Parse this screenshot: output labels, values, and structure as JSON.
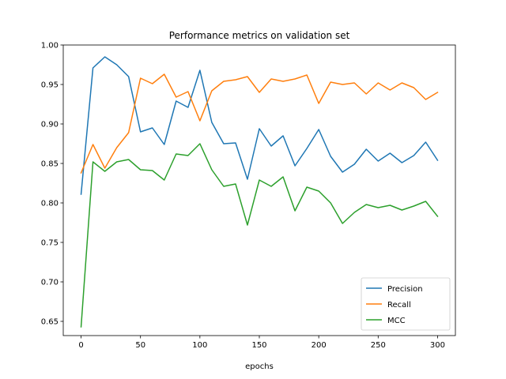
{
  "chart_data": {
    "type": "line",
    "title": "Performance metrics on validation set",
    "xlabel": "epochs",
    "ylabel": "",
    "xlim": [
      -15,
      315
    ],
    "ylim": [
      0.632,
      1.0
    ],
    "x_ticks": [
      0,
      50,
      100,
      150,
      200,
      250,
      300
    ],
    "x_tick_labels": [
      "0",
      "50",
      "100",
      "150",
      "200",
      "250",
      "300"
    ],
    "y_ticks": [
      0.65,
      0.7,
      0.75,
      0.8,
      0.85,
      0.9,
      0.95,
      1.0
    ],
    "y_tick_labels": [
      "0.65",
      "0.70",
      "0.75",
      "0.80",
      "0.85",
      "0.90",
      "0.95",
      "1.00"
    ],
    "grid": false,
    "legend_position": "lower-right",
    "x": [
      0,
      10,
      20,
      30,
      40,
      50,
      60,
      70,
      80,
      90,
      100,
      110,
      120,
      130,
      140,
      150,
      160,
      170,
      180,
      190,
      200,
      210,
      220,
      230,
      240,
      250,
      260,
      270,
      280,
      290,
      300
    ],
    "series": [
      {
        "name": "Precision",
        "color": "#1f77b4",
        "values": [
          0.811,
          0.971,
          0.985,
          0.975,
          0.96,
          0.89,
          0.895,
          0.874,
          0.929,
          0.921,
          0.968,
          0.902,
          0.875,
          0.876,
          0.83,
          0.894,
          0.872,
          0.885,
          0.847,
          0.869,
          0.893,
          0.859,
          0.839,
          0.849,
          0.868,
          0.853,
          0.863,
          0.851,
          0.86,
          0.877,
          0.854
        ]
      },
      {
        "name": "Recall",
        "color": "#ff7f0e",
        "values": [
          0.838,
          0.874,
          0.844,
          0.87,
          0.889,
          0.958,
          0.951,
          0.963,
          0.934,
          0.941,
          0.904,
          0.942,
          0.954,
          0.956,
          0.96,
          0.94,
          0.957,
          0.954,
          0.957,
          0.962,
          0.926,
          0.953,
          0.95,
          0.952,
          0.938,
          0.952,
          0.943,
          0.952,
          0.946,
          0.931,
          0.94
        ]
      },
      {
        "name": "MCC",
        "color": "#2ca02c",
        "values": [
          0.643,
          0.852,
          0.84,
          0.852,
          0.855,
          0.842,
          0.841,
          0.829,
          0.862,
          0.86,
          0.875,
          0.842,
          0.821,
          0.824,
          0.772,
          0.829,
          0.821,
          0.833,
          0.79,
          0.82,
          0.815,
          0.8,
          0.774,
          0.788,
          0.798,
          0.794,
          0.797,
          0.791,
          0.796,
          0.802,
          0.783
        ]
      }
    ]
  }
}
